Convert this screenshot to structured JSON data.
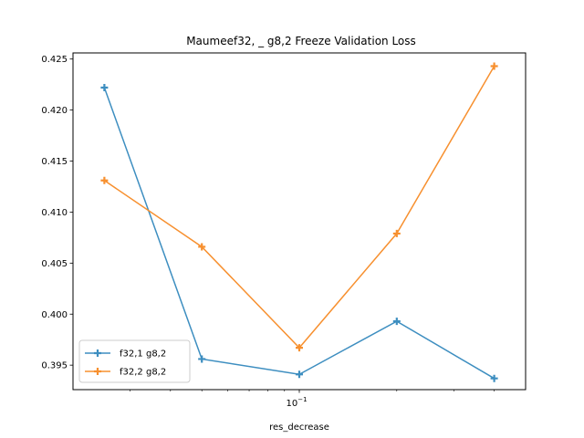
{
  "chart_data": {
    "type": "line",
    "title": "Maumeef32, _ g8,2 Freeze Validation Loss",
    "xlabel": "res_decrease",
    "ylabel": "",
    "x_scale": "log",
    "x": [
      0.025,
      0.05,
      0.1,
      0.2,
      0.4
    ],
    "xlim": [
      0.02,
      0.5
    ],
    "ylim": [
      0.3926,
      0.4256
    ],
    "x_ticks": [
      {
        "value": 0.1,
        "base": "10",
        "exp": "−1"
      }
    ],
    "y_ticks": [
      {
        "value": 0.395,
        "label": "0.395"
      },
      {
        "value": 0.4,
        "label": "0.400"
      },
      {
        "value": 0.405,
        "label": "0.405"
      },
      {
        "value": 0.41,
        "label": "0.410"
      },
      {
        "value": 0.415,
        "label": "0.415"
      },
      {
        "value": 0.42,
        "label": "0.420"
      },
      {
        "value": 0.425,
        "label": "0.425"
      }
    ],
    "grid": false,
    "legend_position": "lower-left",
    "series": [
      {
        "name": "f32,1 g8,2",
        "color": "#3d8ec0",
        "marker": "plus",
        "values": [
          0.4222,
          0.3956,
          0.3941,
          0.3993,
          0.3937
        ]
      },
      {
        "name": "f32,2 g8,2",
        "color": "#f7902f",
        "marker": "plus",
        "values": [
          0.4131,
          0.4066,
          0.3967,
          0.4079,
          0.4243
        ]
      }
    ]
  }
}
